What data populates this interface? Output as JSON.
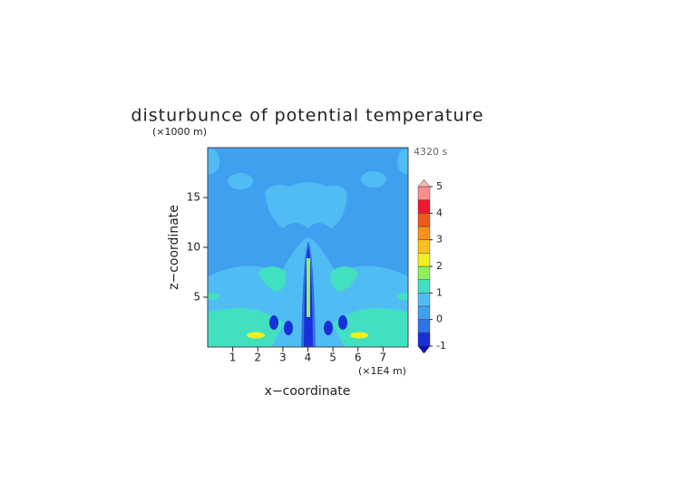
{
  "chart_data": {
    "type": "contour",
    "title": "disturbunce of potential temperature",
    "xlabel": "x−coordinate",
    "ylabel": "z−coordinate",
    "xunit": "(×1E4 m)",
    "yunit": "(×1000 m)",
    "annotation": "4320 s",
    "xlim": [
      0,
      8
    ],
    "xticks": [
      1,
      2,
      3,
      4,
      5,
      6,
      7
    ],
    "ylim": [
      0,
      20
    ],
    "yticks": [
      5,
      10,
      15
    ],
    "levels": [
      -1,
      -0.5,
      0,
      0.5,
      1,
      1.5,
      2,
      2.5,
      3,
      3.5,
      4,
      4.5,
      5
    ],
    "colors": [
      "#1830d8",
      "#3070e8",
      "#40a0f0",
      "#50bcf4",
      "#40e0c0",
      "#90f060",
      "#f0f020",
      "#f8c020",
      "#f89020",
      "#f05818",
      "#f01830",
      "#f89090"
    ],
    "extend_colors": [
      "#1010c0",
      "#f8b8b8"
    ],
    "cbticks": [
      -1,
      0,
      1,
      2,
      3,
      4,
      5
    ]
  }
}
